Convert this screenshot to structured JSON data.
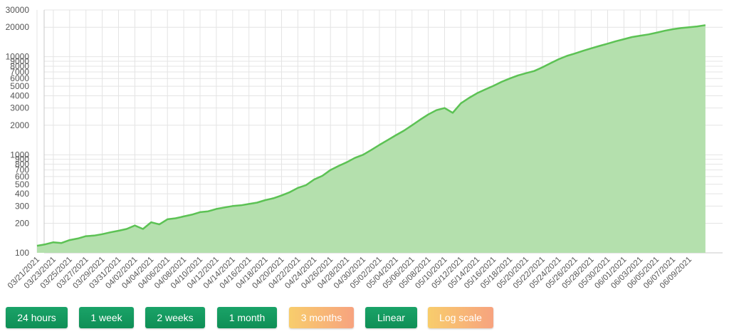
{
  "chart_data": {
    "type": "area",
    "title": "",
    "xlabel": "",
    "ylabel": "",
    "y_scale": "log",
    "ylim": [
      100,
      30000
    ],
    "y_ticks": [
      "100",
      "200",
      "300",
      "400",
      "500",
      "600",
      "700",
      "800",
      "900",
      "1000",
      "2000",
      "3000",
      "4000",
      "5000",
      "6000",
      "7000",
      "8000",
      "9000",
      "10000",
      "20000",
      "30000"
    ],
    "x_ticks": [
      "03/21/2021",
      "03/23/2021",
      "03/25/2021",
      "03/27/2021",
      "03/29/2021",
      "03/31/2021",
      "04/02/2021",
      "04/04/2021",
      "04/06/2021",
      "04/08/2021",
      "04/10/2021",
      "04/12/2021",
      "04/14/2021",
      "04/16/2021",
      "04/18/2021",
      "04/20/2021",
      "04/22/2021",
      "04/24/2021",
      "04/26/2021",
      "04/28/2021",
      "04/30/2021",
      "05/02/2021",
      "05/04/2021",
      "05/06/2021",
      "05/08/2021",
      "05/10/2021",
      "05/12/2021",
      "05/14/2021",
      "05/16/2021",
      "05/18/2021",
      "05/20/2021",
      "05/22/2021",
      "05/24/2021",
      "05/26/2021",
      "05/28/2021",
      "05/30/2021",
      "06/01/2021",
      "06/03/2021",
      "06/05/2021",
      "06/07/2021",
      "06/09/2021"
    ],
    "grid": true,
    "legend": "none",
    "series": [
      {
        "color": "#5cc254",
        "fill": "#b4e0ad",
        "x": [
          "03/21/2021",
          "03/22/2021",
          "03/23/2021",
          "03/24/2021",
          "03/25/2021",
          "03/26/2021",
          "03/27/2021",
          "03/28/2021",
          "03/29/2021",
          "03/30/2021",
          "03/31/2021",
          "04/01/2021",
          "04/02/2021",
          "04/03/2021",
          "04/04/2021",
          "04/05/2021",
          "04/06/2021",
          "04/07/2021",
          "04/08/2021",
          "04/09/2021",
          "04/10/2021",
          "04/11/2021",
          "04/12/2021",
          "04/13/2021",
          "04/14/2021",
          "04/15/2021",
          "04/16/2021",
          "04/17/2021",
          "04/18/2021",
          "04/19/2021",
          "04/20/2021",
          "04/21/2021",
          "04/22/2021",
          "04/23/2021",
          "04/24/2021",
          "04/25/2021",
          "04/26/2021",
          "04/27/2021",
          "04/28/2021",
          "04/29/2021",
          "04/30/2021",
          "05/01/2021",
          "05/02/2021",
          "05/03/2021",
          "05/04/2021",
          "05/05/2021",
          "05/06/2021",
          "05/07/2021",
          "05/08/2021",
          "05/09/2021",
          "05/10/2021",
          "05/11/2021",
          "05/12/2021",
          "05/13/2021",
          "05/14/2021",
          "05/15/2021",
          "05/16/2021",
          "05/17/2021",
          "05/18/2021",
          "05/19/2021",
          "05/20/2021",
          "05/21/2021",
          "05/22/2021",
          "05/23/2021",
          "05/24/2021",
          "05/25/2021",
          "05/26/2021",
          "05/27/2021",
          "05/28/2021",
          "05/29/2021",
          "05/30/2021",
          "05/31/2021",
          "06/01/2021",
          "06/02/2021",
          "06/03/2021",
          "06/04/2021",
          "06/05/2021",
          "06/06/2021",
          "06/07/2021",
          "06/08/2021",
          "06/09/2021",
          "06/10/2021",
          "06/11/2021"
        ],
        "values": [
          118,
          122,
          128,
          126,
          135,
          140,
          148,
          150,
          155,
          162,
          168,
          175,
          190,
          175,
          205,
          195,
          220,
          225,
          235,
          245,
          260,
          265,
          280,
          290,
          300,
          305,
          315,
          325,
          345,
          360,
          385,
          415,
          460,
          490,
          560,
          610,
          700,
          770,
          840,
          930,
          1000,
          1120,
          1260,
          1410,
          1580,
          1760,
          2000,
          2280,
          2580,
          2850,
          3000,
          2680,
          3350,
          3800,
          4250,
          4650,
          5050,
          5550,
          6000,
          6450,
          6800,
          7150,
          7800,
          8600,
          9450,
          10200,
          10800,
          11500,
          12200,
          12900,
          13600,
          14400,
          15100,
          15900,
          16400,
          16900,
          17600,
          18400,
          19100,
          19600,
          20000,
          20400,
          21000
        ]
      }
    ]
  },
  "controls": {
    "buttons": [
      {
        "label": "24 hours",
        "style": "green"
      },
      {
        "label": "1 week",
        "style": "green"
      },
      {
        "label": "2 weeks",
        "style": "green"
      },
      {
        "label": "1 month",
        "style": "green"
      },
      {
        "label": "3 months",
        "style": "orange"
      },
      {
        "label": "Linear",
        "style": "green"
      },
      {
        "label": "Log scale",
        "style": "orange"
      }
    ]
  }
}
